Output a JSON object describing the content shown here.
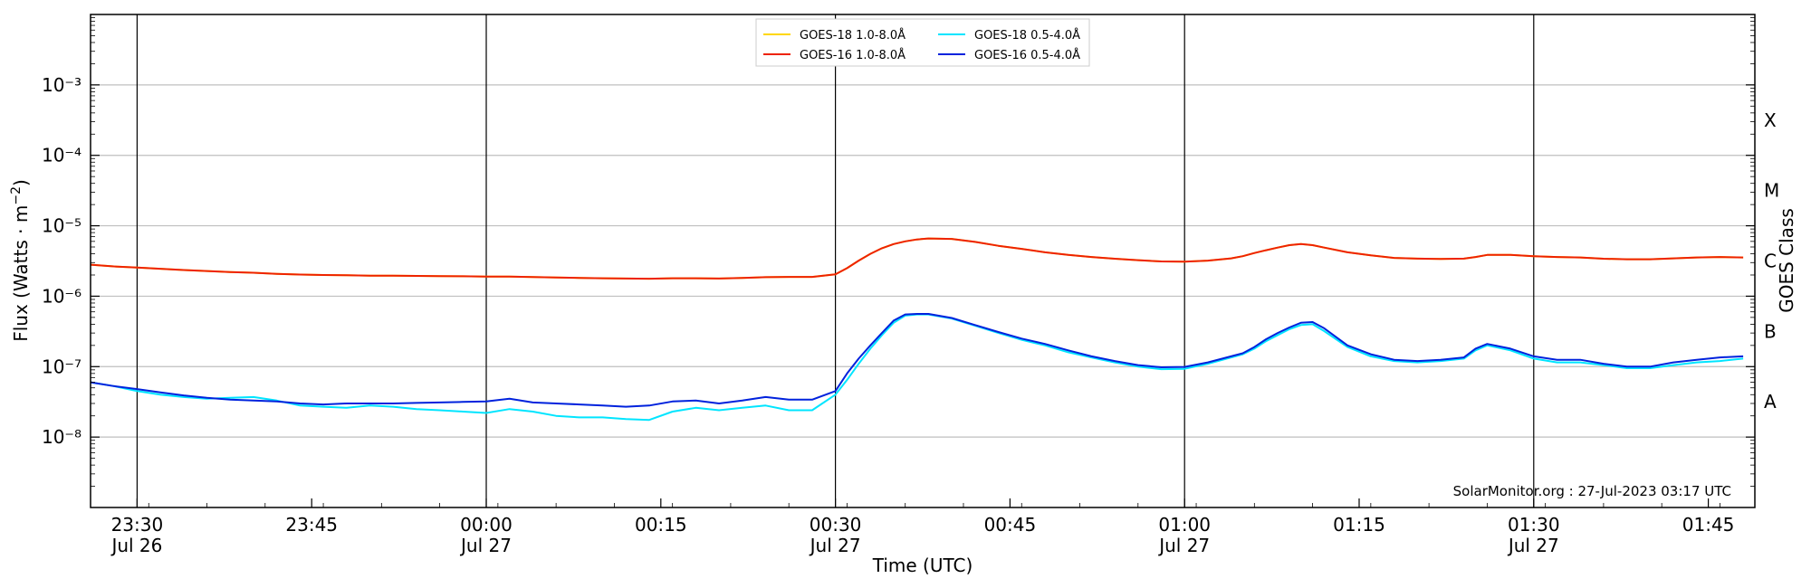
{
  "chart_data": {
    "type": "line",
    "title": "",
    "xlabel": "Time (UTC)",
    "ylabel": "Flux (Watts · m⁻²)",
    "right_ylabel": "GOES Class",
    "y_scale": "log",
    "ylim": [
      1e-09,
      0.01
    ],
    "xlim": [
      "2023-07-26 23:26",
      "2023-07-27 01:49"
    ],
    "grid": "horizontal at decades; vertical lines every 30 min",
    "legend_position": "top-center",
    "y_ticks": [
      {
        "value": 1e-08,
        "label": "10⁻⁸"
      },
      {
        "value": 1e-07,
        "label": "10⁻⁷"
      },
      {
        "value": 1e-06,
        "label": "10⁻⁶"
      },
      {
        "value": 1e-05,
        "label": "10⁻⁵"
      },
      {
        "value": 0.0001,
        "label": "10⁻⁴"
      },
      {
        "value": 0.001,
        "label": "10⁻³"
      }
    ],
    "x_ticks": [
      {
        "time": "2023-07-26 23:30",
        "label": "23:30",
        "sublabel": "Jul 26"
      },
      {
        "time": "2023-07-26 23:45",
        "label": "23:45",
        "sublabel": ""
      },
      {
        "time": "2023-07-27 00:00",
        "label": "00:00",
        "sublabel": "Jul 27"
      },
      {
        "time": "2023-07-27 00:15",
        "label": "00:15",
        "sublabel": ""
      },
      {
        "time": "2023-07-27 00:30",
        "label": "00:30",
        "sublabel": "Jul 27"
      },
      {
        "time": "2023-07-27 00:45",
        "label": "00:45",
        "sublabel": ""
      },
      {
        "time": "2023-07-27 01:00",
        "label": "01:00",
        "sublabel": "Jul 27"
      },
      {
        "time": "2023-07-27 01:15",
        "label": "01:15",
        "sublabel": ""
      },
      {
        "time": "2023-07-27 01:30",
        "label": "01:30",
        "sublabel": "Jul 27"
      },
      {
        "time": "2023-07-27 01:45",
        "label": "01:45",
        "sublabel": ""
      }
    ],
    "vertical_lines": [
      "2023-07-26 23:30",
      "2023-07-27 00:00",
      "2023-07-27 00:30",
      "2023-07-27 01:00",
      "2023-07-27 01:30"
    ],
    "goes_classes": [
      {
        "label": "A",
        "value": 3.16e-08
      },
      {
        "label": "B",
        "value": 3.16e-07
      },
      {
        "label": "C",
        "value": 3.16e-06
      },
      {
        "label": "M",
        "value": 3.16e-05
      },
      {
        "label": "X",
        "value": 0.000316
      }
    ],
    "annotation": "SolarMonitor.org : 27-Jul-2023 03:17 UTC",
    "x": [
      "2023-07-26 23:26",
      "2023-07-26 23:28",
      "2023-07-26 23:30",
      "2023-07-26 23:32",
      "2023-07-26 23:34",
      "2023-07-26 23:36",
      "2023-07-26 23:38",
      "2023-07-26 23:40",
      "2023-07-26 23:42",
      "2023-07-26 23:44",
      "2023-07-26 23:46",
      "2023-07-26 23:48",
      "2023-07-26 23:50",
      "2023-07-26 23:52",
      "2023-07-26 23:54",
      "2023-07-26 23:56",
      "2023-07-26 23:58",
      "2023-07-27 00:00",
      "2023-07-27 00:02",
      "2023-07-27 00:04",
      "2023-07-27 00:06",
      "2023-07-27 00:08",
      "2023-07-27 00:10",
      "2023-07-27 00:12",
      "2023-07-27 00:14",
      "2023-07-27 00:16",
      "2023-07-27 00:18",
      "2023-07-27 00:20",
      "2023-07-27 00:22",
      "2023-07-27 00:24",
      "2023-07-27 00:26",
      "2023-07-27 00:28",
      "2023-07-27 00:30",
      "2023-07-27 00:31",
      "2023-07-27 00:32",
      "2023-07-27 00:33",
      "2023-07-27 00:34",
      "2023-07-27 00:35",
      "2023-07-27 00:36",
      "2023-07-27 00:37",
      "2023-07-27 00:38",
      "2023-07-27 00:40",
      "2023-07-27 00:42",
      "2023-07-27 00:44",
      "2023-07-27 00:46",
      "2023-07-27 00:48",
      "2023-07-27 00:50",
      "2023-07-27 00:52",
      "2023-07-27 00:54",
      "2023-07-27 00:56",
      "2023-07-27 00:58",
      "2023-07-27 01:00",
      "2023-07-27 01:02",
      "2023-07-27 01:04",
      "2023-07-27 01:05",
      "2023-07-27 01:06",
      "2023-07-27 01:07",
      "2023-07-27 01:08",
      "2023-07-27 01:09",
      "2023-07-27 01:10",
      "2023-07-27 01:11",
      "2023-07-27 01:12",
      "2023-07-27 01:14",
      "2023-07-27 01:16",
      "2023-07-27 01:18",
      "2023-07-27 01:20",
      "2023-07-27 01:22",
      "2023-07-27 01:24",
      "2023-07-27 01:25",
      "2023-07-27 01:26",
      "2023-07-27 01:28",
      "2023-07-27 01:30",
      "2023-07-27 01:32",
      "2023-07-27 01:34",
      "2023-07-27 01:36",
      "2023-07-27 01:38",
      "2023-07-27 01:40",
      "2023-07-27 01:42",
      "2023-07-27 01:44",
      "2023-07-27 01:46",
      "2023-07-27 01:48"
    ],
    "series": [
      {
        "name": "GOES-18 1.0-8.0Å",
        "color": "#ffd700",
        "values": [
          2.8e-06,
          2.65e-06,
          2.55e-06,
          2.45e-06,
          2.35e-06,
          2.28e-06,
          2.2e-06,
          2.15e-06,
          2.08e-06,
          2.03e-06,
          2e-06,
          1.98e-06,
          1.96e-06,
          1.95e-06,
          1.94e-06,
          1.93e-06,
          1.92e-06,
          1.9e-06,
          1.9e-06,
          1.87e-06,
          1.84e-06,
          1.82e-06,
          1.8e-06,
          1.78e-06,
          1.77e-06,
          1.8e-06,
          1.8e-06,
          1.78e-06,
          1.82e-06,
          1.86e-06,
          1.88e-06,
          1.88e-06,
          2.05e-06,
          2.5e-06,
          3.2e-06,
          4e-06,
          4.8e-06,
          5.5e-06,
          6e-06,
          6.4e-06,
          6.6e-06,
          6.5e-06,
          5.9e-06,
          5.2e-06,
          4.7e-06,
          4.2e-06,
          3.85e-06,
          3.6e-06,
          3.4e-06,
          3.25e-06,
          3.12e-06,
          3.1e-06,
          3.2e-06,
          3.45e-06,
          3.7e-06,
          4.1e-06,
          4.5e-06,
          4.9e-06,
          5.3e-06,
          5.5e-06,
          5.3e-06,
          4.9e-06,
          4.2e-06,
          3.8e-06,
          3.5e-06,
          3.42e-06,
          3.38e-06,
          3.42e-06,
          3.6e-06,
          3.85e-06,
          3.85e-06,
          3.7e-06,
          3.6e-06,
          3.55e-06,
          3.4e-06,
          3.35e-06,
          3.35e-06,
          3.45e-06,
          3.55e-06,
          3.6e-06,
          3.55e-06
        ]
      },
      {
        "name": "GOES-16 1.0-8.0Å",
        "color": "#ee2200",
        "values": [
          2.8e-06,
          2.65e-06,
          2.55e-06,
          2.45e-06,
          2.35e-06,
          2.28e-06,
          2.2e-06,
          2.15e-06,
          2.08e-06,
          2.03e-06,
          2e-06,
          1.98e-06,
          1.96e-06,
          1.95e-06,
          1.94e-06,
          1.93e-06,
          1.92e-06,
          1.9e-06,
          1.9e-06,
          1.87e-06,
          1.84e-06,
          1.82e-06,
          1.8e-06,
          1.78e-06,
          1.77e-06,
          1.8e-06,
          1.8e-06,
          1.78e-06,
          1.82e-06,
          1.86e-06,
          1.88e-06,
          1.88e-06,
          2.05e-06,
          2.5e-06,
          3.2e-06,
          4e-06,
          4.8e-06,
          5.5e-06,
          6e-06,
          6.4e-06,
          6.6e-06,
          6.5e-06,
          5.9e-06,
          5.2e-06,
          4.7e-06,
          4.2e-06,
          3.85e-06,
          3.6e-06,
          3.4e-06,
          3.25e-06,
          3.12e-06,
          3.1e-06,
          3.2e-06,
          3.45e-06,
          3.7e-06,
          4.1e-06,
          4.5e-06,
          4.9e-06,
          5.3e-06,
          5.5e-06,
          5.3e-06,
          4.9e-06,
          4.2e-06,
          3.8e-06,
          3.5e-06,
          3.42e-06,
          3.38e-06,
          3.42e-06,
          3.6e-06,
          3.85e-06,
          3.85e-06,
          3.7e-06,
          3.6e-06,
          3.55e-06,
          3.4e-06,
          3.35e-06,
          3.35e-06,
          3.45e-06,
          3.55e-06,
          3.6e-06,
          3.55e-06
        ]
      },
      {
        "name": "GOES-18 0.5-4.0Å",
        "color": "#00e5ff",
        "values": [
          6e-08,
          5.3e-08,
          4.5e-08,
          4e-08,
          3.7e-08,
          3.5e-08,
          3.6e-08,
          3.7e-08,
          3.3e-08,
          2.8e-08,
          2.7e-08,
          2.6e-08,
          2.8e-08,
          2.7e-08,
          2.5e-08,
          2.4e-08,
          2.3e-08,
          2.2e-08,
          2.5e-08,
          2.3e-08,
          2e-08,
          1.9e-08,
          1.9e-08,
          1.8e-08,
          1.75e-08,
          2.3e-08,
          2.6e-08,
          2.4e-08,
          2.6e-08,
          2.8e-08,
          2.4e-08,
          2.4e-08,
          4e-08,
          6.5e-08,
          1.1e-07,
          1.8e-07,
          2.8e-07,
          4.2e-07,
          5.3e-07,
          5.5e-07,
          5.5e-07,
          4.8e-07,
          3.8e-07,
          3e-07,
          2.4e-07,
          2e-07,
          1.6e-07,
          1.35e-07,
          1.15e-07,
          1e-07,
          9.2e-08,
          9.3e-08,
          1.1e-07,
          1.35e-07,
          1.5e-07,
          1.8e-07,
          2.3e-07,
          2.8e-07,
          3.4e-07,
          3.9e-07,
          4e-07,
          3.2e-07,
          1.9e-07,
          1.4e-07,
          1.2e-07,
          1.15e-07,
          1.2e-07,
          1.3e-07,
          1.7e-07,
          2e-07,
          1.7e-07,
          1.3e-07,
          1.15e-07,
          1.15e-07,
          1.05e-07,
          9.5e-08,
          9.5e-08,
          1.05e-07,
          1.15e-07,
          1.2e-07,
          1.3e-07
        ]
      },
      {
        "name": "GOES-16 0.5-4.0Å",
        "color": "#0022dd",
        "values": [
          6e-08,
          5.3e-08,
          4.8e-08,
          4.3e-08,
          3.9e-08,
          3.6e-08,
          3.4e-08,
          3.3e-08,
          3.2e-08,
          3e-08,
          2.9e-08,
          3e-08,
          3e-08,
          3e-08,
          3.05e-08,
          3.1e-08,
          3.15e-08,
          3.2e-08,
          3.5e-08,
          3.1e-08,
          3e-08,
          2.9e-08,
          2.8e-08,
          2.7e-08,
          2.8e-08,
          3.2e-08,
          3.3e-08,
          3e-08,
          3.3e-08,
          3.7e-08,
          3.4e-08,
          3.4e-08,
          4.5e-08,
          8e-08,
          1.3e-07,
          2e-07,
          3e-07,
          4.5e-07,
          5.5e-07,
          5.6e-07,
          5.6e-07,
          4.9e-07,
          3.9e-07,
          3.1e-07,
          2.5e-07,
          2.1e-07,
          1.7e-07,
          1.4e-07,
          1.2e-07,
          1.05e-07,
          9.8e-08,
          9.9e-08,
          1.15e-07,
          1.4e-07,
          1.55e-07,
          1.9e-07,
          2.45e-07,
          3e-07,
          3.6e-07,
          4.2e-07,
          4.3e-07,
          3.5e-07,
          2e-07,
          1.5e-07,
          1.25e-07,
          1.2e-07,
          1.25e-07,
          1.35e-07,
          1.8e-07,
          2.1e-07,
          1.8e-07,
          1.4e-07,
          1.25e-07,
          1.25e-07,
          1.1e-07,
          1e-07,
          1e-07,
          1.15e-07,
          1.25e-07,
          1.35e-07,
          1.4e-07
        ]
      }
    ]
  }
}
